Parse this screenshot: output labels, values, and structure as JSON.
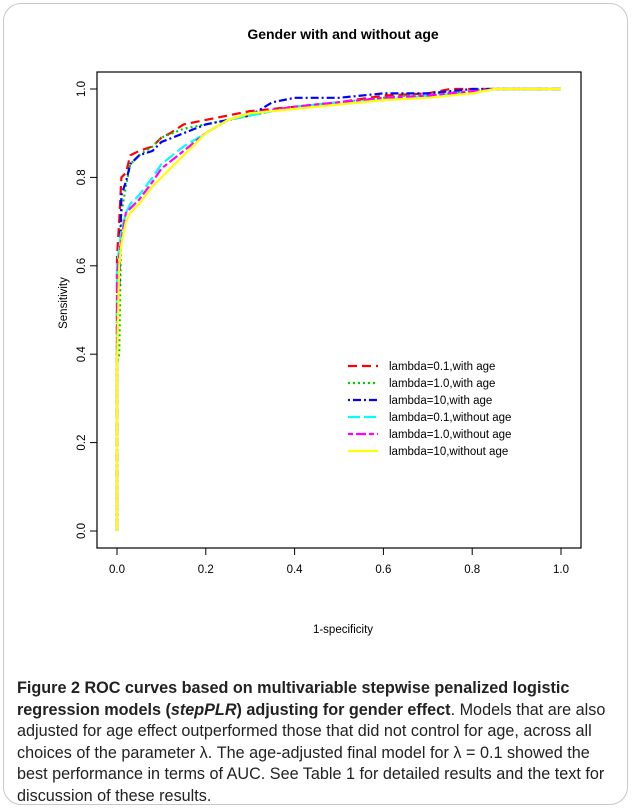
{
  "chart_data": {
    "type": "line",
    "title": "Gender with and without age",
    "xlabel": "1-specificity",
    "ylabel": "Sensitivity",
    "xlim": [
      0,
      1
    ],
    "ylim": [
      0,
      1
    ],
    "xticks": [
      "0.0",
      "0.2",
      "0.4",
      "0.6",
      "0.8",
      "1.0"
    ],
    "yticks": [
      "0.0",
      "0.2",
      "0.4",
      "0.6",
      "0.8",
      "1.0"
    ],
    "grid": false,
    "legend_position": "lower-right",
    "series": [
      {
        "name": "lambda=0.1,with age",
        "color": "#ff0000",
        "dash": "dashed",
        "points": [
          [
            0,
            0
          ],
          [
            0,
            0.62
          ],
          [
            0.005,
            0.7
          ],
          [
            0.01,
            0.8
          ],
          [
            0.02,
            0.81
          ],
          [
            0.03,
            0.85
          ],
          [
            0.05,
            0.86
          ],
          [
            0.08,
            0.87
          ],
          [
            0.1,
            0.89
          ],
          [
            0.12,
            0.9
          ],
          [
            0.15,
            0.92
          ],
          [
            0.2,
            0.93
          ],
          [
            0.25,
            0.94
          ],
          [
            0.3,
            0.95
          ],
          [
            0.4,
            0.96
          ],
          [
            0.5,
            0.97
          ],
          [
            0.6,
            0.985
          ],
          [
            0.7,
            0.99
          ],
          [
            0.75,
            1.0
          ],
          [
            1.0,
            1.0
          ]
        ]
      },
      {
        "name": "lambda=1.0,with age",
        "color": "#00cc00",
        "dash": "dotted",
        "points": [
          [
            0,
            0
          ],
          [
            0,
            0.38
          ],
          [
            0.005,
            0.4
          ],
          [
            0.01,
            0.72
          ],
          [
            0.02,
            0.78
          ],
          [
            0.03,
            0.83
          ],
          [
            0.05,
            0.85
          ],
          [
            0.08,
            0.87
          ],
          [
            0.1,
            0.89
          ],
          [
            0.15,
            0.91
          ],
          [
            0.2,
            0.92
          ],
          [
            0.3,
            0.94
          ],
          [
            0.4,
            0.96
          ],
          [
            0.5,
            0.97
          ],
          [
            0.6,
            0.98
          ],
          [
            0.7,
            0.99
          ],
          [
            0.8,
            0.995
          ],
          [
            0.82,
            1.0
          ],
          [
            1.0,
            1.0
          ]
        ]
      },
      {
        "name": "lambda=10,with age",
        "color": "#0000ff",
        "dash": "dotdash",
        "points": [
          [
            0,
            0
          ],
          [
            0,
            0.5
          ],
          [
            0.005,
            0.55
          ],
          [
            0.01,
            0.76
          ],
          [
            0.02,
            0.79
          ],
          [
            0.03,
            0.83
          ],
          [
            0.05,
            0.85
          ],
          [
            0.08,
            0.86
          ],
          [
            0.1,
            0.88
          ],
          [
            0.15,
            0.9
          ],
          [
            0.2,
            0.92
          ],
          [
            0.25,
            0.93
          ],
          [
            0.3,
            0.94
          ],
          [
            0.35,
            0.97
          ],
          [
            0.4,
            0.98
          ],
          [
            0.5,
            0.98
          ],
          [
            0.6,
            0.99
          ],
          [
            0.7,
            0.99
          ],
          [
            0.8,
            1.0
          ],
          [
            1.0,
            1.0
          ]
        ]
      },
      {
        "name": "lambda=0.1,without age",
        "color": "#00ffff",
        "dash": "longdash",
        "points": [
          [
            0,
            0
          ],
          [
            0,
            0.6
          ],
          [
            0.005,
            0.64
          ],
          [
            0.01,
            0.68
          ],
          [
            0.02,
            0.72
          ],
          [
            0.03,
            0.74
          ],
          [
            0.05,
            0.76
          ],
          [
            0.08,
            0.8
          ],
          [
            0.1,
            0.83
          ],
          [
            0.15,
            0.87
          ],
          [
            0.2,
            0.9
          ],
          [
            0.25,
            0.93
          ],
          [
            0.3,
            0.94
          ],
          [
            0.4,
            0.96
          ],
          [
            0.5,
            0.97
          ],
          [
            0.6,
            0.975
          ],
          [
            0.7,
            0.985
          ],
          [
            0.8,
            0.99
          ],
          [
            0.85,
            1.0
          ],
          [
            1.0,
            1.0
          ]
        ]
      },
      {
        "name": "lambda=1.0,without age",
        "color": "#ff00ff",
        "dash": "twodash",
        "points": [
          [
            0,
            0
          ],
          [
            0,
            0.58
          ],
          [
            0.005,
            0.62
          ],
          [
            0.01,
            0.66
          ],
          [
            0.02,
            0.72
          ],
          [
            0.03,
            0.73
          ],
          [
            0.05,
            0.75
          ],
          [
            0.08,
            0.79
          ],
          [
            0.1,
            0.82
          ],
          [
            0.15,
            0.86
          ],
          [
            0.2,
            0.9
          ],
          [
            0.25,
            0.93
          ],
          [
            0.3,
            0.945
          ],
          [
            0.4,
            0.96
          ],
          [
            0.5,
            0.97
          ],
          [
            0.6,
            0.98
          ],
          [
            0.7,
            0.985
          ],
          [
            0.8,
            0.995
          ],
          [
            0.85,
            1.0
          ],
          [
            1.0,
            1.0
          ]
        ]
      },
      {
        "name": "lambda=10,without age",
        "color": "#ffff00",
        "dash": "solid",
        "points": [
          [
            0,
            0
          ],
          [
            0,
            0.38
          ],
          [
            0.005,
            0.6
          ],
          [
            0.01,
            0.65
          ],
          [
            0.02,
            0.7
          ],
          [
            0.03,
            0.72
          ],
          [
            0.05,
            0.74
          ],
          [
            0.08,
            0.78
          ],
          [
            0.1,
            0.8
          ],
          [
            0.15,
            0.85
          ],
          [
            0.2,
            0.9
          ],
          [
            0.25,
            0.93
          ],
          [
            0.3,
            0.945
          ],
          [
            0.4,
            0.955
          ],
          [
            0.5,
            0.965
          ],
          [
            0.6,
            0.975
          ],
          [
            0.7,
            0.98
          ],
          [
            0.8,
            0.99
          ],
          [
            0.85,
            1.0
          ],
          [
            1.0,
            1.0
          ]
        ]
      }
    ]
  },
  "caption": {
    "lead_a": "Figure 2 ROC curves based on multivariable stepwise penalized logistic regression models (",
    "lead_italic": "stepPLR",
    "lead_b": ") adjusting for gender effect",
    "lead_end": ".",
    "body": " Models that are also adjusted for age effect outperformed those that did not control for age, across all choices of the parameter λ. The age-adjusted final model for λ = 0.1 showed the best performance in terms of AUC. See Table 1 for detailed results and the text for discussion of these results."
  }
}
